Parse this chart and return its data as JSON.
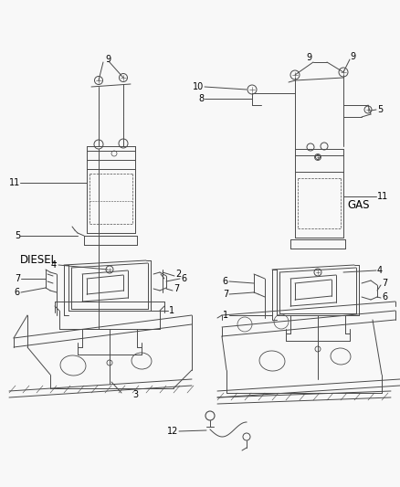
{
  "bg_color": "#f5f5f5",
  "line_color": "#555555",
  "fig_width": 4.38,
  "fig_height": 5.33,
  "dpi": 100,
  "label_fontsize": 7.0,
  "bold_label_fontsize": 8.5
}
